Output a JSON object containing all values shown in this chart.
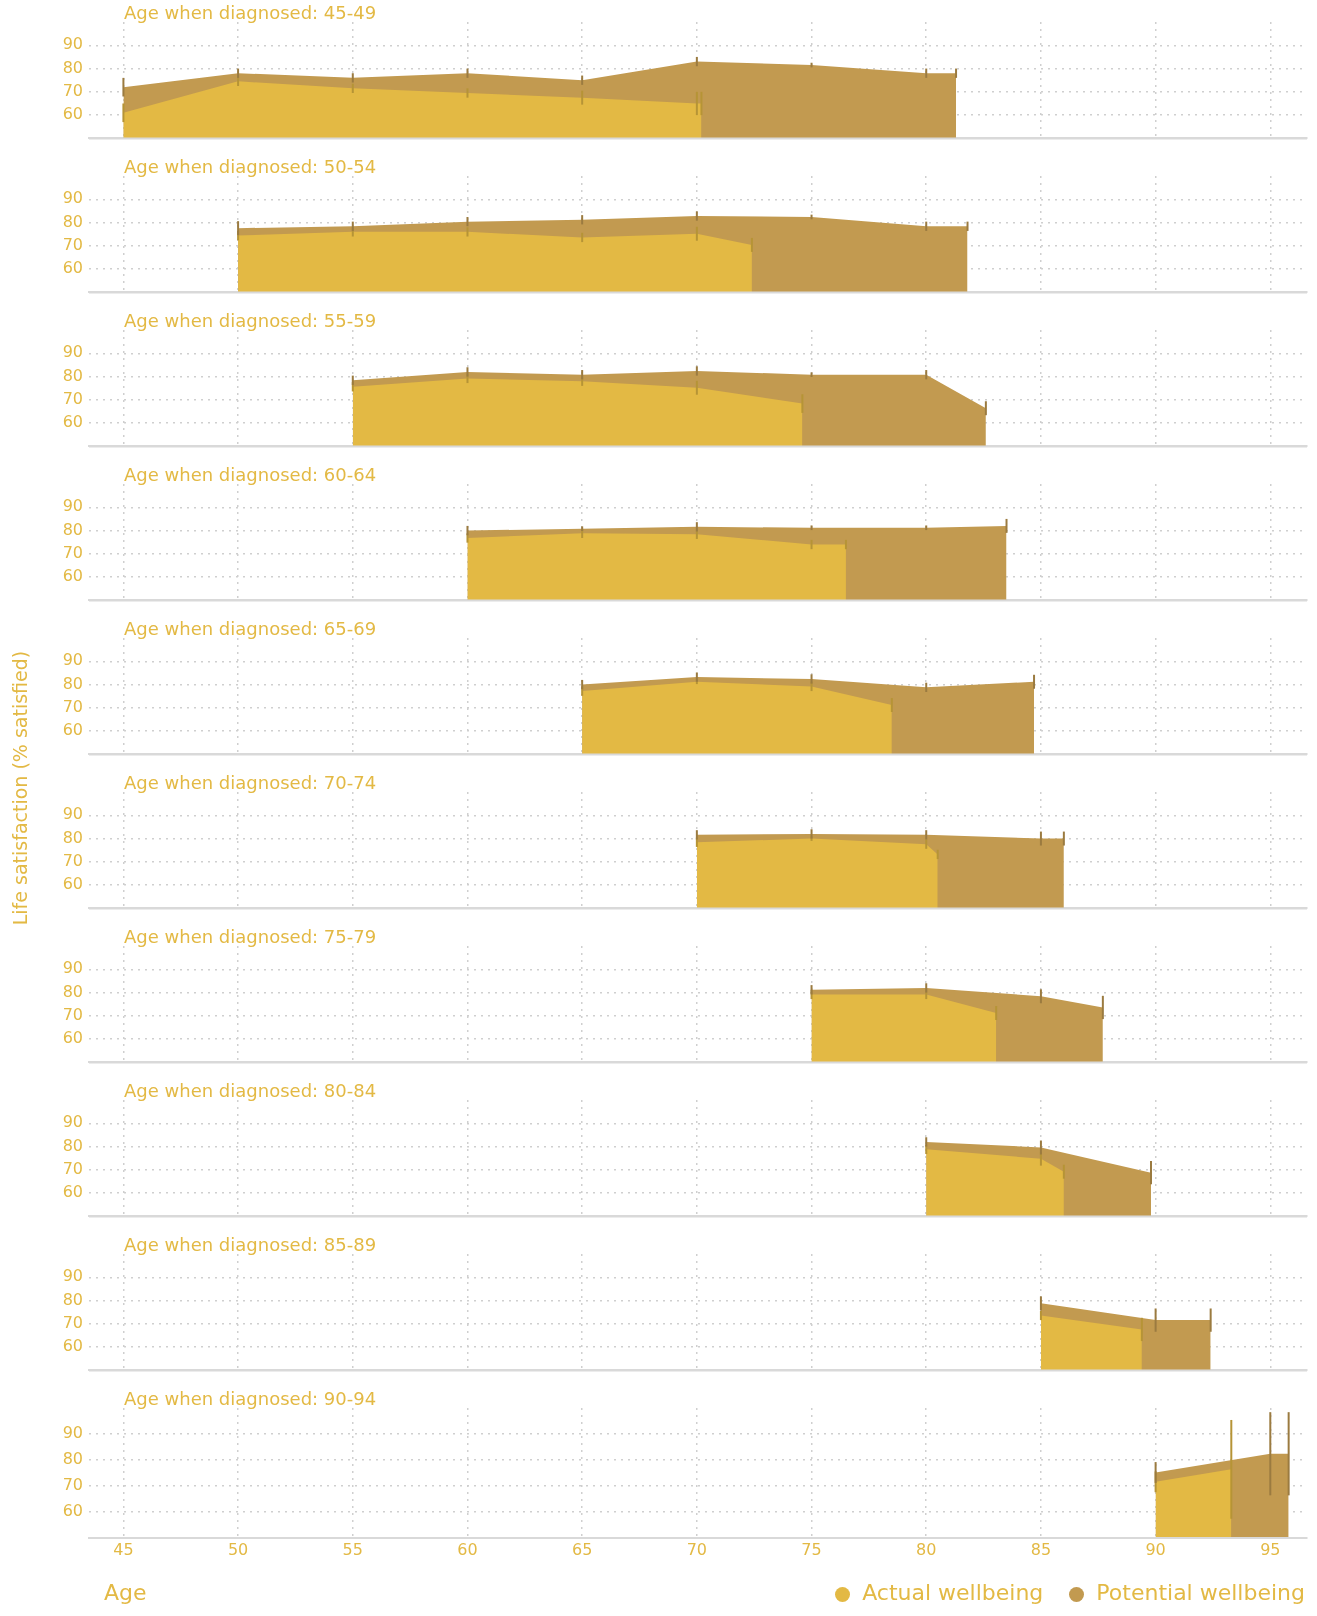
{
  "chart_data": [
    {
      "type": "area",
      "title": "Age when diagnosed: 45-49",
      "xlim": [
        43.5,
        96.6
      ],
      "xticks": [
        45,
        50,
        55,
        60,
        65,
        70,
        75,
        80,
        85,
        90,
        95
      ],
      "ylim": [
        50,
        100
      ],
      "yticks": [
        60,
        70,
        80,
        90
      ],
      "grid": true,
      "tick_labels": "y",
      "series": [
        {
          "color": "#e3b944",
          "x": [
            45,
            50,
            55,
            60,
            65,
            70,
            70.2
          ],
          "values": [
            61,
            74.5,
            71.5,
            69.5,
            67.5,
            65,
            65
          ],
          "errors": [
            4,
            2,
            2,
            2,
            3,
            5,
            5
          ]
        },
        {
          "color": "#c29a50",
          "x": [
            45,
            50,
            55,
            60,
            65,
            70,
            75,
            80,
            81.3
          ],
          "values": [
            72,
            78,
            76,
            78,
            75,
            83,
            81.5,
            78,
            78
          ],
          "errors": [
            4,
            2,
            2,
            2,
            2,
            2,
            1,
            2,
            2
          ]
        }
      ]
    },
    {
      "type": "area",
      "title": "Age when diagnosed: 50-54",
      "xlim": [
        43.5,
        96.6
      ],
      "xticks": [
        45,
        50,
        55,
        60,
        65,
        70,
        75,
        80,
        85,
        90,
        95
      ],
      "ylim": [
        50,
        100
      ],
      "yticks": [
        60,
        70,
        80,
        90
      ],
      "grid": true,
      "tick_labels": "y",
      "series": [
        {
          "color": "#e3b944",
          "x": [
            50,
            55,
            60,
            65,
            70,
            72.4
          ],
          "values": [
            74.4,
            76,
            76,
            73.6,
            75.2,
            70.4
          ],
          "errors": [
            2,
            2,
            2,
            2,
            3,
            3
          ]
        },
        {
          "color": "#c29a50",
          "x": [
            50,
            55,
            60,
            65,
            70,
            75,
            80,
            81.8
          ],
          "values": [
            77.6,
            78.4,
            80.4,
            81.2,
            82.8,
            82.4,
            78.4,
            78.4
          ],
          "errors": [
            3,
            2,
            2,
            2,
            2,
            1,
            2,
            2
          ]
        }
      ]
    },
    {
      "type": "area",
      "title": "Age when diagnosed: 55-59",
      "xlim": [
        43.5,
        96.6
      ],
      "xticks": [
        45,
        50,
        55,
        60,
        65,
        70,
        75,
        80,
        85,
        90,
        95
      ],
      "ylim": [
        50,
        100
      ],
      "yticks": [
        60,
        70,
        80,
        90
      ],
      "grid": true,
      "tick_labels": "y",
      "series": [
        {
          "color": "#e3b944",
          "x": [
            55,
            60,
            65,
            70,
            74.6
          ],
          "values": [
            75.6,
            79.2,
            78,
            75.2,
            68.4
          ],
          "errors": [
            2,
            2,
            2,
            3,
            4
          ]
        },
        {
          "color": "#c29a50",
          "x": [
            55,
            60,
            65,
            70,
            75,
            80,
            82.6
          ],
          "values": [
            78.4,
            82,
            80.8,
            82.4,
            80.8,
            80.8,
            66.4
          ],
          "errors": [
            2,
            2,
            2,
            2,
            1,
            2,
            3
          ]
        }
      ]
    },
    {
      "type": "area",
      "title": "Age when diagnosed: 60-64",
      "xlim": [
        43.5,
        96.6
      ],
      "xticks": [
        45,
        50,
        55,
        60,
        65,
        70,
        75,
        80,
        85,
        90,
        95
      ],
      "ylim": [
        50,
        100
      ],
      "yticks": [
        60,
        70,
        80,
        90
      ],
      "grid": true,
      "tick_labels": "y",
      "series": [
        {
          "color": "#e3b944",
          "x": [
            60,
            65,
            70,
            75,
            76.5
          ],
          "values": [
            76.8,
            78.8,
            78.4,
            74,
            74
          ],
          "errors": [
            2,
            2,
            2,
            2,
            2
          ]
        },
        {
          "color": "#c29a50",
          "x": [
            60,
            65,
            70,
            75,
            80,
            83.5
          ],
          "values": [
            80,
            80.8,
            81.6,
            81.2,
            81.2,
            82
          ],
          "errors": [
            2,
            1,
            2,
            1,
            1,
            3
          ]
        }
      ]
    },
    {
      "type": "area",
      "title": "Age when diagnosed: 65-69",
      "ylabel": "Life satisfaction (% satisfied)",
      "xlim": [
        43.5,
        96.6
      ],
      "xticks": [
        45,
        50,
        55,
        60,
        65,
        70,
        75,
        80,
        85,
        90,
        95
      ],
      "ylim": [
        50,
        100
      ],
      "yticks": [
        60,
        70,
        80,
        90
      ],
      "grid": true,
      "tick_labels": "y",
      "series": [
        {
          "color": "#e3b944",
          "x": [
            65,
            70,
            75,
            78.5
          ],
          "values": [
            77.2,
            81.2,
            79.2,
            71.2
          ],
          "errors": [
            2,
            1,
            2,
            3
          ]
        },
        {
          "color": "#c29a50",
          "x": [
            65,
            70,
            75,
            80,
            84.7
          ],
          "values": [
            80,
            83.2,
            82.4,
            78.8,
            81.2
          ],
          "errors": [
            2,
            2,
            2,
            2,
            3
          ]
        }
      ]
    },
    {
      "type": "area",
      "title": "Age when diagnosed: 70-74",
      "xlim": [
        43.5,
        96.6
      ],
      "xticks": [
        45,
        50,
        55,
        60,
        65,
        70,
        75,
        80,
        85,
        90,
        95
      ],
      "ylim": [
        50,
        100
      ],
      "yticks": [
        60,
        70,
        80,
        90
      ],
      "grid": true,
      "tick_labels": "y",
      "series": [
        {
          "color": "#e3b944",
          "x": [
            70,
            75,
            80,
            80.5
          ],
          "values": [
            78.4,
            80,
            77.6,
            73.2
          ],
          "errors": [
            2,
            1,
            2,
            2
          ]
        },
        {
          "color": "#c29a50",
          "x": [
            70,
            75,
            80,
            85,
            86
          ],
          "values": [
            81.6,
            82,
            81.6,
            80,
            80
          ],
          "errors": [
            2,
            2,
            2,
            3,
            3
          ]
        }
      ]
    },
    {
      "type": "area",
      "title": "Age when diagnosed: 75-79",
      "xlim": [
        43.5,
        96.6
      ],
      "xticks": [
        45,
        50,
        55,
        60,
        65,
        70,
        75,
        80,
        85,
        90,
        95
      ],
      "ylim": [
        50,
        100
      ],
      "yticks": [
        60,
        70,
        80,
        90
      ],
      "grid": true,
      "tick_labels": "y",
      "series": [
        {
          "color": "#e3b944",
          "x": [
            75,
            80,
            83.05
          ],
          "values": [
            79.2,
            79.2,
            71.2
          ],
          "errors": [
            2,
            2,
            3
          ]
        },
        {
          "color": "#c29a50",
          "x": [
            75,
            80,
            85,
            87.7
          ],
          "values": [
            81.2,
            82,
            78.4,
            73.6
          ],
          "errors": [
            2,
            2,
            3,
            5
          ]
        }
      ]
    },
    {
      "type": "area",
      "title": "Age when diagnosed: 80-84",
      "xlim": [
        43.5,
        96.6
      ],
      "xticks": [
        45,
        50,
        55,
        60,
        65,
        70,
        75,
        80,
        85,
        90,
        95
      ],
      "ylim": [
        50,
        100
      ],
      "yticks": [
        60,
        70,
        80,
        90
      ],
      "grid": true,
      "tick_labels": "y",
      "series": [
        {
          "color": "#e3b944",
          "x": [
            80,
            85,
            86
          ],
          "values": [
            78.8,
            74.8,
            69.2
          ],
          "errors": [
            2,
            3,
            3
          ]
        },
        {
          "color": "#c29a50",
          "x": [
            80,
            85,
            89.8
          ],
          "values": [
            82,
            79.6,
            68.8
          ],
          "errors": [
            2,
            3,
            5
          ]
        }
      ]
    },
    {
      "type": "area",
      "title": "Age when diagnosed: 85-89",
      "xlim": [
        43.5,
        96.6
      ],
      "xticks": [
        45,
        50,
        55,
        60,
        65,
        70,
        75,
        80,
        85,
        90,
        95
      ],
      "ylim": [
        50,
        100
      ],
      "yticks": [
        60,
        70,
        80,
        90
      ],
      "grid": true,
      "tick_labels": "y",
      "series": [
        {
          "color": "#e3b944",
          "x": [
            85,
            89.4
          ],
          "values": [
            73.6,
            67.6
          ],
          "errors": [
            2,
            5
          ]
        },
        {
          "color": "#c29a50",
          "x": [
            85,
            90,
            92.4
          ],
          "values": [
            78.8,
            71.6,
            71.6
          ],
          "errors": [
            3,
            5,
            5
          ]
        }
      ]
    },
    {
      "type": "area",
      "title": "Age when diagnosed: 90-94",
      "xlabel": "Age",
      "legend": "bottom right",
      "xlim": [
        43.5,
        96.6
      ],
      "xticks": [
        45,
        50,
        55,
        60,
        65,
        70,
        75,
        80,
        85,
        90,
        95
      ],
      "ylim": [
        50,
        100
      ],
      "yticks": [
        60,
        70,
        80,
        90
      ],
      "grid": true,
      "series": [
        {
          "name": "Actual wellbeing",
          "color": "#e3b944",
          "x": [
            90,
            93.3
          ],
          "values": [
            71.6,
            76.4
          ],
          "errors": [
            4,
            19
          ]
        },
        {
          "name": "Potential wellbeing",
          "color": "#c29a50",
          "x": [
            90,
            95,
            95.8
          ],
          "values": [
            75.2,
            82.4,
            82.4
          ],
          "errors": [
            4,
            16,
            16
          ]
        }
      ]
    }
  ]
}
